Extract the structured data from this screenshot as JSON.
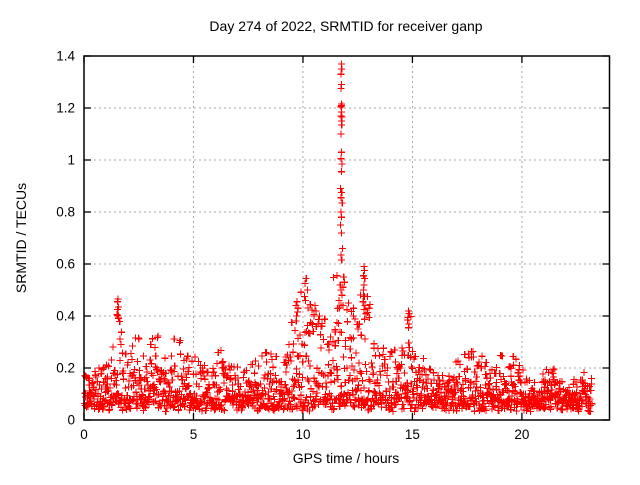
{
  "chart_data": {
    "type": "scatter",
    "title": "Day 274 of 2022, SRMTID for receiver ganp",
    "xlabel": "GPS time / hours",
    "ylabel": "SRMTID / TECUs",
    "xlim": [
      0,
      24
    ],
    "ylim": [
      0,
      1.4
    ],
    "xticks": [
      0,
      5,
      10,
      15,
      20
    ],
    "xtick_labels": [
      "0",
      "5",
      "10",
      "15",
      "20"
    ],
    "yticks": [
      0,
      0.2,
      0.4,
      0.6,
      0.8,
      1,
      1.2,
      1.4
    ],
    "ytick_labels": [
      "0",
      "0.2",
      "0.4",
      "0.6",
      "0.8",
      "1",
      "1.2",
      "1.4"
    ],
    "grid": true,
    "legend": "none",
    "marker": "plus",
    "marker_color": "#ff0000",
    "grid_color": "#a8a8a8",
    "frame_color": "#000000",
    "x_start": 0.02,
    "x_end": 23.2,
    "generated_point_count": 1700,
    "baseline_min": 0.032,
    "baseline_spread": 0.045,
    "band_segments": [
      [
        0.0,
        0.6,
        0.2
      ],
      [
        0.6,
        1.2,
        0.23
      ],
      [
        1.2,
        1.45,
        0.3
      ],
      [
        1.45,
        1.75,
        0.44
      ],
      [
        1.75,
        2.2,
        0.28
      ],
      [
        2.2,
        2.6,
        0.33
      ],
      [
        2.6,
        3.0,
        0.25
      ],
      [
        3.0,
        3.4,
        0.33
      ],
      [
        3.4,
        4.0,
        0.26
      ],
      [
        4.0,
        4.5,
        0.33
      ],
      [
        4.5,
        5.1,
        0.25
      ],
      [
        5.1,
        5.6,
        0.23
      ],
      [
        5.6,
        6.1,
        0.22
      ],
      [
        6.1,
        6.5,
        0.27
      ],
      [
        6.5,
        7.0,
        0.24
      ],
      [
        7.0,
        7.6,
        0.21
      ],
      [
        7.6,
        8.1,
        0.26
      ],
      [
        8.1,
        8.6,
        0.27
      ],
      [
        8.6,
        9.3,
        0.26
      ],
      [
        9.3,
        9.9,
        0.42
      ],
      [
        9.9,
        10.45,
        0.5
      ],
      [
        10.45,
        11.05,
        0.42
      ],
      [
        11.05,
        11.5,
        0.35
      ],
      [
        11.5,
        12.1,
        0.55
      ],
      [
        12.1,
        12.55,
        0.42
      ],
      [
        12.55,
        13.1,
        0.52
      ],
      [
        13.1,
        13.7,
        0.3
      ],
      [
        13.7,
        14.4,
        0.27
      ],
      [
        14.4,
        14.75,
        0.3
      ],
      [
        14.75,
        15.15,
        0.4
      ],
      [
        15.15,
        15.6,
        0.28
      ],
      [
        15.6,
        16.2,
        0.22
      ],
      [
        16.2,
        16.9,
        0.2
      ],
      [
        16.9,
        17.35,
        0.23
      ],
      [
        17.35,
        18.0,
        0.28
      ],
      [
        18.0,
        18.4,
        0.25
      ],
      [
        18.4,
        19.0,
        0.21
      ],
      [
        19.0,
        19.8,
        0.25
      ],
      [
        19.8,
        20.3,
        0.22
      ],
      [
        20.3,
        21.0,
        0.18
      ],
      [
        21.0,
        21.5,
        0.2
      ],
      [
        21.5,
        22.1,
        0.15
      ],
      [
        22.1,
        22.7,
        0.16
      ],
      [
        22.7,
        23.2,
        0.19
      ]
    ],
    "peak_points": [
      [
        11.75,
        1.37
      ],
      [
        11.77,
        1.35
      ],
      [
        11.74,
        1.33
      ],
      [
        11.76,
        1.29
      ],
      [
        11.73,
        1.275
      ],
      [
        11.75,
        1.215
      ],
      [
        11.77,
        1.21
      ],
      [
        11.74,
        1.205
      ],
      [
        11.76,
        1.185
      ],
      [
        11.73,
        1.17
      ],
      [
        11.78,
        1.165
      ],
      [
        11.75,
        1.15
      ],
      [
        11.77,
        1.135
      ],
      [
        11.73,
        1.1
      ],
      [
        11.76,
        1.03
      ],
      [
        11.74,
        1.005
      ],
      [
        11.78,
        0.985
      ],
      [
        11.75,
        0.955
      ],
      [
        11.72,
        0.89
      ],
      [
        11.77,
        0.875
      ],
      [
        11.74,
        0.855
      ],
      [
        11.79,
        0.835
      ],
      [
        11.73,
        0.8
      ],
      [
        11.76,
        0.78
      ],
      [
        11.71,
        0.75
      ],
      [
        11.75,
        0.72
      ],
      [
        11.8,
        0.66
      ],
      [
        11.74,
        0.635
      ],
      [
        11.77,
        0.615
      ],
      [
        11.55,
        0.555
      ],
      [
        11.86,
        0.55
      ],
      [
        11.9,
        0.53
      ],
      [
        11.7,
        0.52
      ],
      [
        11.73,
        0.5
      ],
      [
        11.78,
        0.48
      ],
      [
        11.65,
        0.46
      ],
      [
        11.82,
        0.44
      ],
      [
        12.78,
        0.59
      ],
      [
        12.8,
        0.575
      ],
      [
        12.76,
        0.555
      ],
      [
        12.82,
        0.545
      ],
      [
        12.79,
        0.52
      ],
      [
        12.77,
        0.5
      ],
      [
        12.81,
        0.475
      ],
      [
        12.75,
        0.455
      ],
      [
        12.83,
        0.44
      ],
      [
        12.78,
        0.425
      ],
      [
        10.15,
        0.545
      ],
      [
        10.1,
        0.525
      ],
      [
        10.2,
        0.5
      ],
      [
        10.06,
        0.475
      ],
      [
        10.12,
        0.46
      ],
      [
        9.72,
        0.455
      ],
      [
        9.68,
        0.44
      ],
      [
        9.78,
        0.43
      ],
      [
        9.74,
        0.415
      ],
      [
        9.7,
        0.4
      ],
      [
        1.55,
        0.465
      ],
      [
        1.52,
        0.455
      ],
      [
        1.57,
        0.435
      ],
      [
        1.54,
        0.425
      ],
      [
        1.5,
        0.405
      ],
      [
        1.56,
        0.4
      ],
      [
        14.82,
        0.42
      ],
      [
        14.85,
        0.41
      ],
      [
        14.8,
        0.395
      ],
      [
        14.78,
        0.385
      ],
      [
        14.84,
        0.37
      ],
      [
        14.81,
        0.355
      ],
      [
        10.55,
        0.44
      ],
      [
        10.6,
        0.42
      ],
      [
        10.5,
        0.4
      ],
      [
        12.3,
        0.43
      ],
      [
        13.02,
        0.43
      ],
      [
        11.4,
        0.548
      ],
      [
        11.56,
        0.375
      ]
    ]
  }
}
